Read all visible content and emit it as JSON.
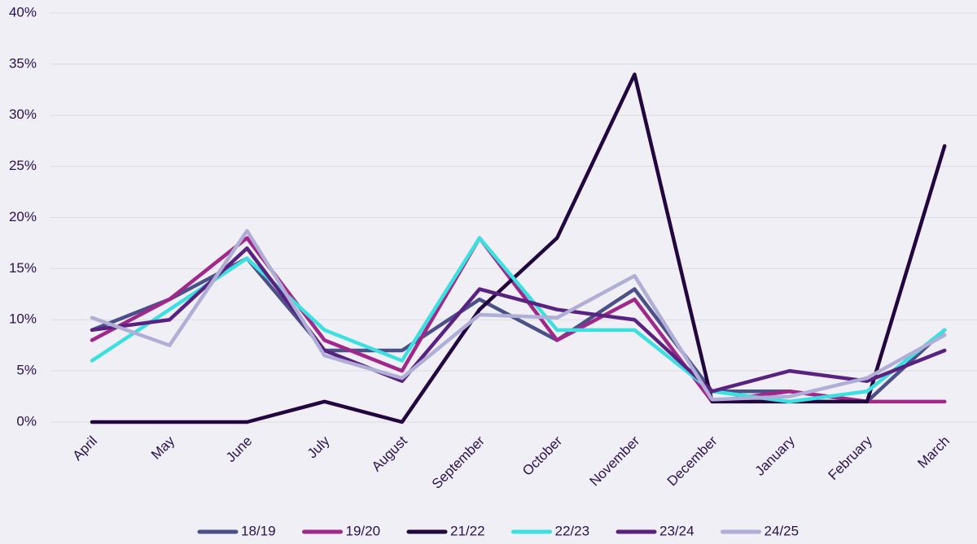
{
  "chart_data": {
    "type": "line",
    "categories": [
      "April",
      "May",
      "June",
      "July",
      "August",
      "September",
      "October",
      "November",
      "December",
      "January",
      "February",
      "March"
    ],
    "series": [
      {
        "name": "18/19",
        "color": "#4b5088",
        "values": [
          9,
          12,
          16,
          7,
          7,
          12,
          8,
          13,
          3,
          3,
          2,
          9
        ]
      },
      {
        "name": "19/20",
        "color": "#a0288a",
        "values": [
          8,
          12,
          18,
          8,
          5,
          18,
          8,
          12,
          2,
          3,
          2,
          2
        ]
      },
      {
        "name": "21/22",
        "color": "#22063f",
        "values": [
          0,
          0,
          0,
          2,
          0,
          11,
          18,
          34,
          2,
          2,
          2,
          27
        ]
      },
      {
        "name": "22/23",
        "color": "#3de0e0",
        "values": [
          6,
          11,
          16,
          9,
          6,
          18,
          9,
          9,
          3,
          2,
          3,
          9
        ]
      },
      {
        "name": "23/24",
        "color": "#5a2280",
        "values": [
          9,
          10,
          17,
          7,
          4,
          13,
          11,
          10,
          3,
          5,
          4,
          7
        ]
      },
      {
        "name": "24/25",
        "color": "#b0aed6",
        "values": [
          10.2,
          7.5,
          18.7,
          6.5,
          4.3,
          10.5,
          10.2,
          14.3,
          2.2,
          2.5,
          4.3,
          8.5
        ]
      }
    ],
    "ylim": [
      0,
      40
    ],
    "yticks": [
      {
        "value": 0,
        "label": "0%"
      },
      {
        "value": 5,
        "label": "5%"
      },
      {
        "value": 10,
        "label": "10%"
      },
      {
        "value": 15,
        "label": "15%"
      },
      {
        "value": 20,
        "label": "20%"
      },
      {
        "value": 25,
        "label": "25%"
      },
      {
        "value": 30,
        "label": "30%"
      },
      {
        "value": 35,
        "label": "35%"
      },
      {
        "value": 40,
        "label": "40%"
      }
    ],
    "grid": true,
    "legend": "bottom"
  }
}
